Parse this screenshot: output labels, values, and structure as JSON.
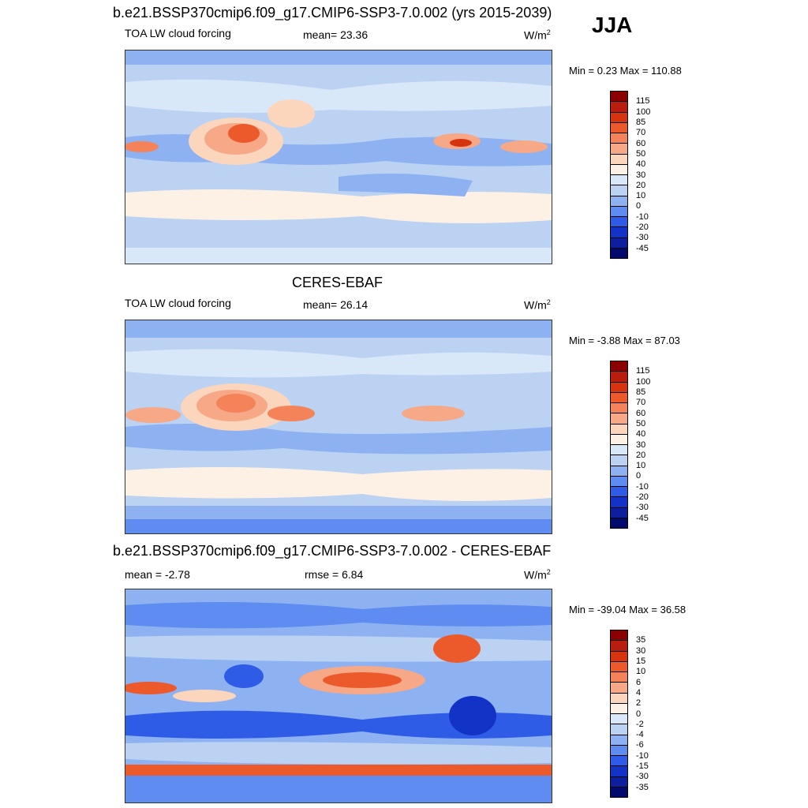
{
  "season": "JJA",
  "panels": [
    {
      "title": "b.e21.BSSP370cmip6.f09_g17.CMIP6-SSP3-7.0.002 (yrs 2015-2039)",
      "left_label": "TOA LW cloud forcing",
      "center_label": "mean=  23.36",
      "units": "W/m",
      "units_sup": "2",
      "minmax": "Min =   0.23 Max = 110.88",
      "colorbar_labels": [
        "115",
        "100",
        "85",
        "70",
        "60",
        "50",
        "40",
        "30",
        "20",
        "10",
        "0",
        "-10",
        "-20",
        "-30",
        "-45"
      ]
    },
    {
      "title": "CERES-EBAF",
      "left_label": "TOA LW cloud forcing",
      "center_label": "mean=  26.14",
      "units": "W/m",
      "units_sup": "2",
      "minmax": "Min =  -3.88 Max =  87.03",
      "colorbar_labels": [
        "115",
        "100",
        "85",
        "70",
        "60",
        "50",
        "40",
        "30",
        "20",
        "10",
        "0",
        "-10",
        "-20",
        "-30",
        "-45"
      ]
    },
    {
      "title": "b.e21.BSSP370cmip6.f09_g17.CMIP6-SSP3-7.0.002 - CERES-EBAF",
      "left_label": "mean =  -2.78",
      "center_label": "rmse =   6.84",
      "units": "W/m",
      "units_sup": "2",
      "minmax": "Min = -39.04 Max =  36.58",
      "colorbar_labels": [
        "35",
        "30",
        "15",
        "10",
        "6",
        "4",
        "2",
        "0",
        "-2",
        "-4",
        "-6",
        "-10",
        "-15",
        "-30",
        "-35"
      ]
    }
  ],
  "colors": {
    "scale": [
      "#8b0000",
      "#b81d0d",
      "#d6330f",
      "#ec5a2c",
      "#f4835a",
      "#f6a887",
      "#fcd5bd",
      "#fdf1e6",
      "#d9e8f8",
      "#bbd2f3",
      "#8eb2f1",
      "#5f8cf0",
      "#2f5ce6",
      "#1333c6",
      "#0d1f9c",
      "#030a6e"
    ],
    "diff_scale": [
      "#8b0000",
      "#b81d0d",
      "#d6330f",
      "#ec5a2c",
      "#f4835a",
      "#f6a887",
      "#fcd5bd",
      "#fdf1e6",
      "#d9e8f8",
      "#bbd2f3",
      "#8eb2f1",
      "#5f8cf0",
      "#2f5ce6",
      "#1333c6",
      "#0d1f9c",
      "#030a6e"
    ]
  }
}
